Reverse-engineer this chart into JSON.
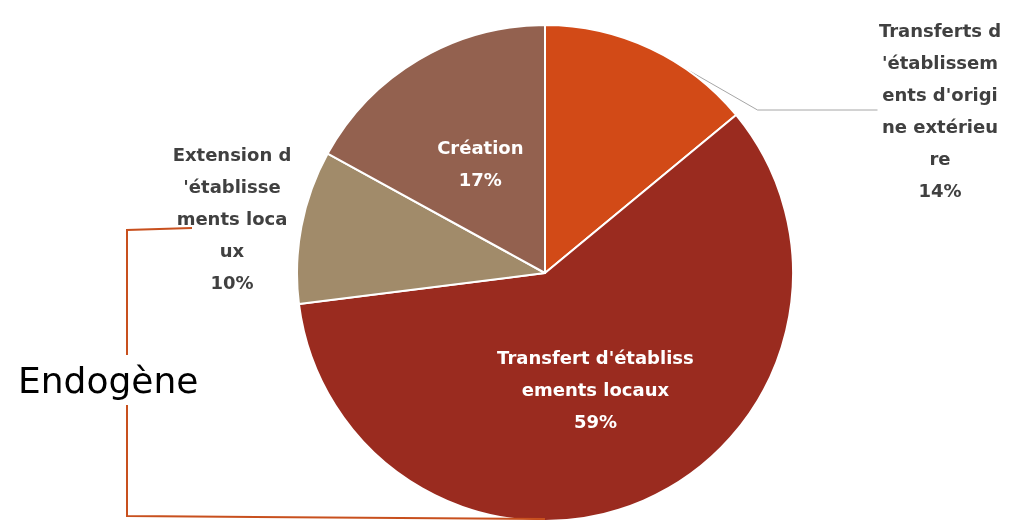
{
  "chart_data": {
    "type": "pie",
    "categories": [
      "Transferts d'établissements d'origine extérieure",
      "Transfert d'établissements locaux",
      "Extension d'établissements locaux",
      "Création"
    ],
    "values": [
      14,
      59,
      10,
      17
    ],
    "colors": [
      "#d24a17",
      "#9a2b1f",
      "#a18b6a",
      "#93614f"
    ],
    "value_labels": [
      "14%",
      "59%",
      "10%",
      "17%"
    ],
    "legend": false,
    "annotations": [
      "Endogène"
    ]
  }
}
